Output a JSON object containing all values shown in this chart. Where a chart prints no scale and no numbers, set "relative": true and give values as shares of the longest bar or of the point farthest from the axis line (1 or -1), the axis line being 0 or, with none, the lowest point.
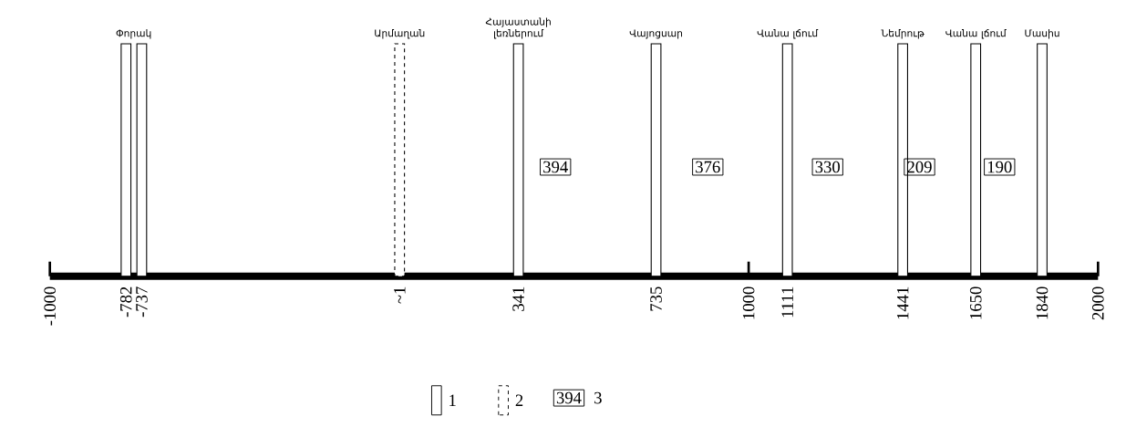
{
  "chart_data": {
    "type": "bar",
    "relative": true,
    "xlim": [
      -1000,
      2000
    ],
    "xticks": [
      -1000,
      -782,
      -737,
      {
        "value": 1,
        "label": "~1"
      },
      341,
      735,
      1000,
      1111,
      1441,
      1650,
      1840,
      2000
    ],
    "series": [
      {
        "name": "1",
        "color": "#ffffff",
        "line_style": "solid",
        "x": [
          -782,
          -737,
          341,
          735,
          1111,
          1441,
          1650,
          1840
        ],
        "values": [
          1,
          1,
          1,
          1,
          1,
          1,
          1,
          1
        ]
      },
      {
        "name": "2",
        "color": "#ffffff",
        "line_style": "dashed",
        "x": [
          1
        ],
        "values": [
          1
        ]
      }
    ],
    "annotations": [
      {
        "text": "Փորակ",
        "x": -760,
        "y": 1
      },
      {
        "text": "Արմաղան",
        "x": 1,
        "y": 1
      },
      {
        "text": "Հայաստանի լեռներում",
        "x": 341,
        "y": 1
      },
      {
        "text": "Վայոցսար",
        "x": 735,
        "y": 1
      },
      {
        "text": "Վանա լճում",
        "x": 1111,
        "y": 1
      },
      {
        "text": "Նեմրութ",
        "x": 1441,
        "y": 1
      },
      {
        "text": "Վանա լճում",
        "x": 1650,
        "y": 1
      },
      {
        "text": "Մասիս",
        "x": 1840,
        "y": 1
      },
      {
        "text": "394",
        "x": 447,
        "y": 0.47
      },
      {
        "text": "376",
        "x": 883,
        "y": 0.47
      },
      {
        "text": "330",
        "x": 1226,
        "y": 0.47
      },
      {
        "text": "209",
        "x": 1489,
        "y": 0.47
      },
      {
        "text": "190",
        "x": 1718,
        "y": 0.47
      },
      "3"
    ],
    "legend": "bottom"
  }
}
